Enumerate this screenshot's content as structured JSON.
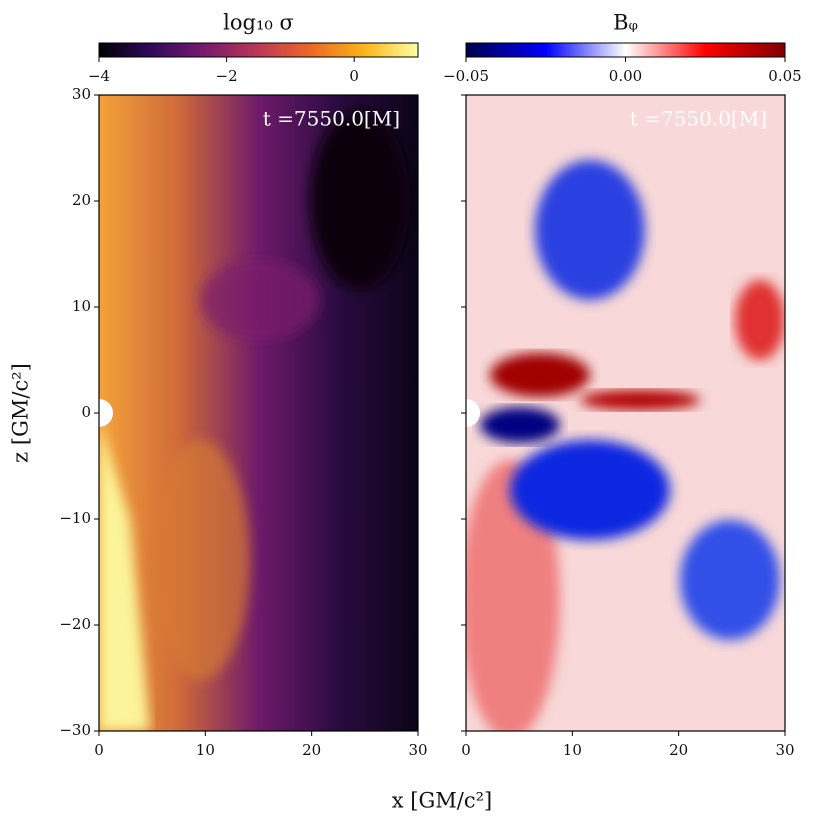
{
  "figure": {
    "xlabel": "x [GM/c²]",
    "ylabel": "z [GM/c²]"
  },
  "chart_data": [
    {
      "type": "heatmap",
      "colorbar_label": "log₁₀ σ",
      "colormap": [
        "#000004",
        "#320a5e",
        "#781c6d",
        "#bc3754",
        "#ed6925",
        "#fbb61a",
        "#fcffa4"
      ],
      "clim": [
        -4,
        1
      ],
      "cticks": [
        {
          "value": -4,
          "label": "−4"
        },
        {
          "value": -2,
          "label": "−2"
        },
        0
      ],
      "annotation": "t =7550.0[M]",
      "xlim": [
        0,
        30
      ],
      "ylim": [
        -30,
        30
      ],
      "xticks": [
        0,
        10,
        20,
        30
      ],
      "yticks": [
        {
          "value": -30,
          "label": "−30"
        },
        {
          "value": -20,
          "label": "−20"
        },
        {
          "value": -10,
          "label": "−10"
        },
        0,
        10,
        20,
        30
      ]
    },
    {
      "type": "heatmap",
      "colorbar_label": "Bᵩ",
      "colormap": [
        "#00004c",
        "#0000ff",
        "#ffffff",
        "#ff0000",
        "#800000"
      ],
      "clim": [
        -0.05,
        0.05
      ],
      "cticks": [
        {
          "value": -0.05,
          "label": "−0.05"
        },
        {
          "value": 0,
          "label": "0.00"
        },
        0.05
      ],
      "annotation": "t =7550.0[M]",
      "xlim": [
        0,
        30
      ],
      "ylim": [
        -30,
        30
      ],
      "xticks": [
        0,
        10,
        20,
        30
      ],
      "yticks": [
        -30,
        -20,
        -10,
        0,
        10,
        20,
        30
      ]
    }
  ]
}
